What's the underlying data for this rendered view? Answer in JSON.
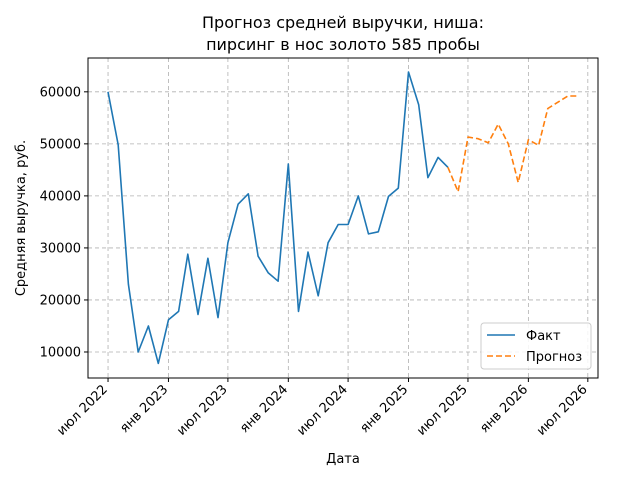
{
  "chart_data": {
    "type": "line",
    "title_lines": [
      "Прогноз средней выручки, ниша:",
      "пирсинг в нос золото 585 пробы"
    ],
    "xlabel": "Дата",
    "ylabel": "Средняя выручка, руб.",
    "ylim": [
      5000,
      66500
    ],
    "xlim": [
      "2022-05-01",
      "2026-08-01"
    ],
    "grid": true,
    "legend_position": "bottom-right",
    "y_ticks": [
      10000,
      20000,
      30000,
      40000,
      50000,
      60000
    ],
    "y_tick_labels": [
      "10000",
      "20000",
      "30000",
      "40000",
      "50000",
      "60000"
    ],
    "x_ticks": [
      "2022-07-01",
      "2023-01-01",
      "2023-07-01",
      "2024-01-01",
      "2024-07-01",
      "2025-01-01",
      "2025-07-01",
      "2026-01-01",
      "2026-07-01"
    ],
    "x_tick_labels": [
      "июл 2022",
      "янв 2023",
      "июл 2023",
      "янв 2024",
      "июл 2024",
      "янв 2025",
      "июл 2025",
      "янв 2026",
      "июл 2026"
    ],
    "series": [
      {
        "name": "Факт",
        "color": "#1f77b4",
        "style": "solid",
        "x": [
          "2022-07-01",
          "2022-08-01",
          "2022-09-01",
          "2022-10-01",
          "2022-11-01",
          "2022-12-01",
          "2023-01-01",
          "2023-02-01",
          "2023-03-01",
          "2023-04-01",
          "2023-05-01",
          "2023-06-01",
          "2023-07-01",
          "2023-08-01",
          "2023-09-01",
          "2023-10-01",
          "2023-11-01",
          "2023-12-01",
          "2024-01-01",
          "2024-02-01",
          "2024-03-01",
          "2024-04-01",
          "2024-05-01",
          "2024-06-01",
          "2024-07-01",
          "2024-08-01",
          "2024-09-01",
          "2024-10-01",
          "2024-11-01",
          "2024-12-01",
          "2025-01-01",
          "2025-02-01",
          "2025-03-01",
          "2025-04-01",
          "2025-05-01"
        ],
        "values": [
          60000,
          49800,
          23000,
          10000,
          15000,
          7800,
          16200,
          17800,
          28800,
          17200,
          28000,
          16600,
          31000,
          38400,
          40400,
          28400,
          25200,
          23600,
          46100,
          17800,
          29200,
          20800,
          31000,
          34500,
          34500,
          40000,
          32700,
          33100,
          39900,
          41500,
          63800,
          57500,
          43500,
          47400,
          45500
        ]
      },
      {
        "name": "Прогноз",
        "color": "#ff7f0e",
        "style": "dashed",
        "x": [
          "2025-05-01",
          "2025-06-01",
          "2025-07-01",
          "2025-08-01",
          "2025-09-01",
          "2025-10-01",
          "2025-11-01",
          "2025-12-01",
          "2026-01-01",
          "2026-02-01",
          "2026-03-01",
          "2026-04-01",
          "2026-05-01",
          "2026-06-01"
        ],
        "values": [
          45500,
          40800,
          51300,
          51000,
          50200,
          53800,
          50000,
          42600,
          50800,
          49700,
          56800,
          58000,
          59200,
          59200
        ]
      }
    ]
  }
}
